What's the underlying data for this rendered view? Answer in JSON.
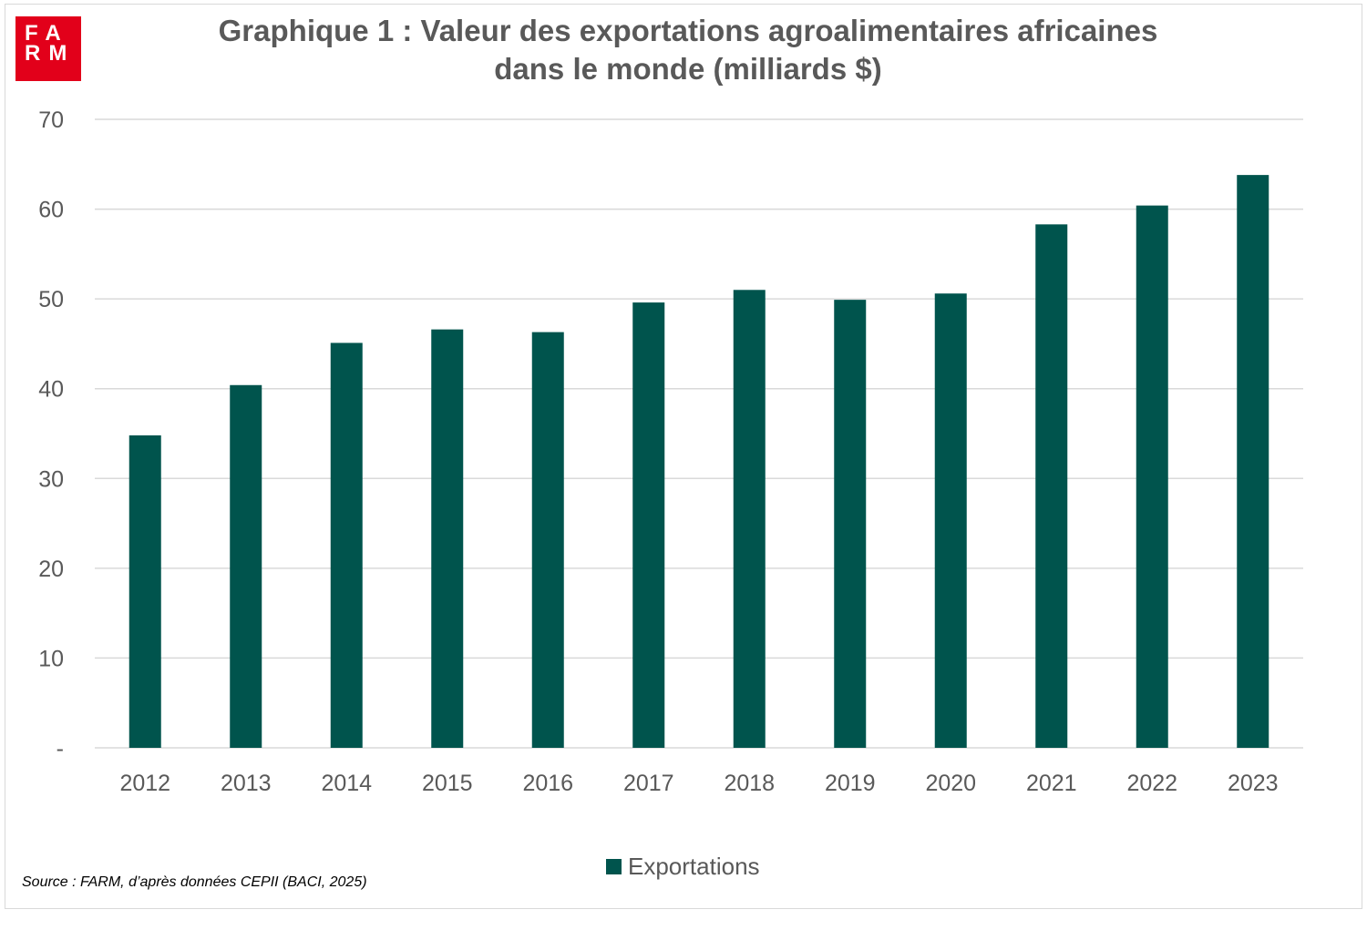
{
  "logo": {
    "line1": "FA",
    "line2": "RM"
  },
  "title_line1": "Graphique 1 : Valeur des exportations agroalimentaires africaines",
  "title_line2": "dans le monde (milliards $)",
  "source": "Source : FARM, d’après données CEPII (BACI, 2025)",
  "colors": {
    "bar": "#00544d",
    "grid": "#d9d9d9",
    "text": "#595959",
    "logo": "#e2001a"
  },
  "chart_data": {
    "type": "bar",
    "categories": [
      "2012",
      "2013",
      "2014",
      "2015",
      "2016",
      "2017",
      "2018",
      "2019",
      "2020",
      "2021",
      "2022",
      "2023"
    ],
    "series": [
      {
        "name": "Exportations",
        "values": [
          34.8,
          40.4,
          45.1,
          46.6,
          46.3,
          49.6,
          51.0,
          49.9,
          50.6,
          58.3,
          60.4,
          63.8
        ]
      }
    ],
    "yticks": [
      {
        "value": 0,
        "label": "-"
      },
      {
        "value": 10,
        "label": "10"
      },
      {
        "value": 20,
        "label": "20"
      },
      {
        "value": 30,
        "label": "30"
      },
      {
        "value": 40,
        "label": "40"
      },
      {
        "value": 50,
        "label": "50"
      },
      {
        "value": 60,
        "label": "60"
      },
      {
        "value": 70,
        "label": "70"
      }
    ],
    "ylim": [
      0,
      70
    ],
    "grid": true,
    "legend_position": "bottom"
  }
}
